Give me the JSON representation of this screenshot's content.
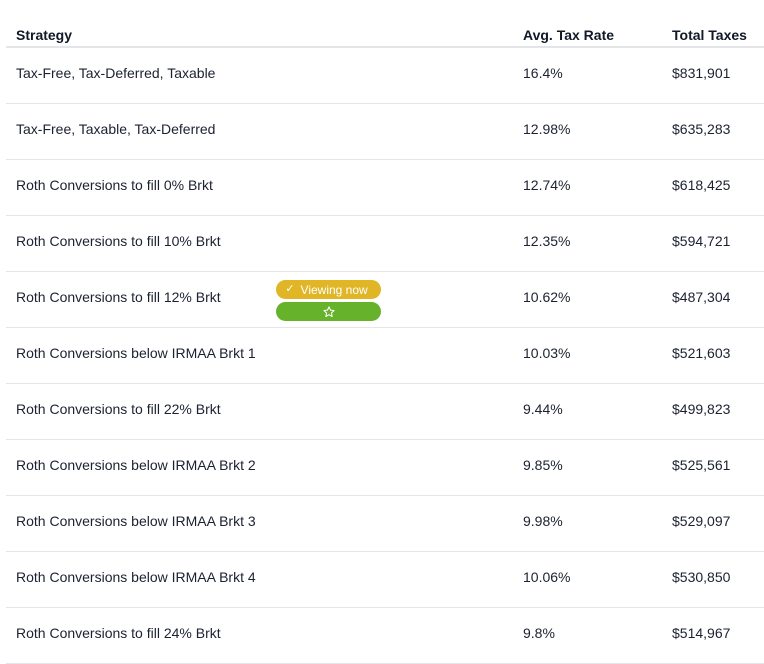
{
  "table": {
    "headers": {
      "strategy": "Strategy",
      "avg_tax_rate": "Avg. Tax Rate",
      "total_taxes": "Total Taxes"
    },
    "rows": [
      {
        "strategy": "Tax-Free, Tax-Deferred, Taxable",
        "avg_tax_rate": "16.4%",
        "total_taxes": "$831,901"
      },
      {
        "strategy": "Tax-Free, Taxable, Tax-Deferred",
        "avg_tax_rate": "12.98%",
        "total_taxes": "$635,283"
      },
      {
        "strategy": "Roth Conversions to fill 0% Brkt",
        "avg_tax_rate": "12.74%",
        "total_taxes": "$618,425"
      },
      {
        "strategy": "Roth Conversions to fill 10% Brkt",
        "avg_tax_rate": "12.35%",
        "total_taxes": "$594,721"
      },
      {
        "strategy": "Roth Conversions to fill 12% Brkt",
        "avg_tax_rate": "10.62%",
        "total_taxes": "$487,304",
        "badge": "Viewing now"
      },
      {
        "strategy": "Roth Conversions below IRMAA Brkt 1",
        "avg_tax_rate": "10.03%",
        "total_taxes": "$521,603"
      },
      {
        "strategy": "Roth Conversions to fill 22% Brkt",
        "avg_tax_rate": "9.44%",
        "total_taxes": "$499,823"
      },
      {
        "strategy": "Roth Conversions below IRMAA Brkt 2",
        "avg_tax_rate": "9.85%",
        "total_taxes": "$525,561"
      },
      {
        "strategy": "Roth Conversions below IRMAA Brkt 3",
        "avg_tax_rate": "9.98%",
        "total_taxes": "$529,097"
      },
      {
        "strategy": "Roth Conversions below IRMAA Brkt 4",
        "avg_tax_rate": "10.06%",
        "total_taxes": "$530,850"
      },
      {
        "strategy": "Roth Conversions to fill 24% Brkt",
        "avg_tax_rate": "9.8%",
        "total_taxes": "$514,967"
      }
    ]
  },
  "badge": {
    "viewing_label": "Viewing now",
    "viewing_icon": "check-icon",
    "favorite_icon": "star-outline-icon"
  },
  "colors": {
    "viewing_badge": "#e0b526",
    "favorite_button": "#66b22b",
    "row_divider": "#e4e6ea"
  }
}
